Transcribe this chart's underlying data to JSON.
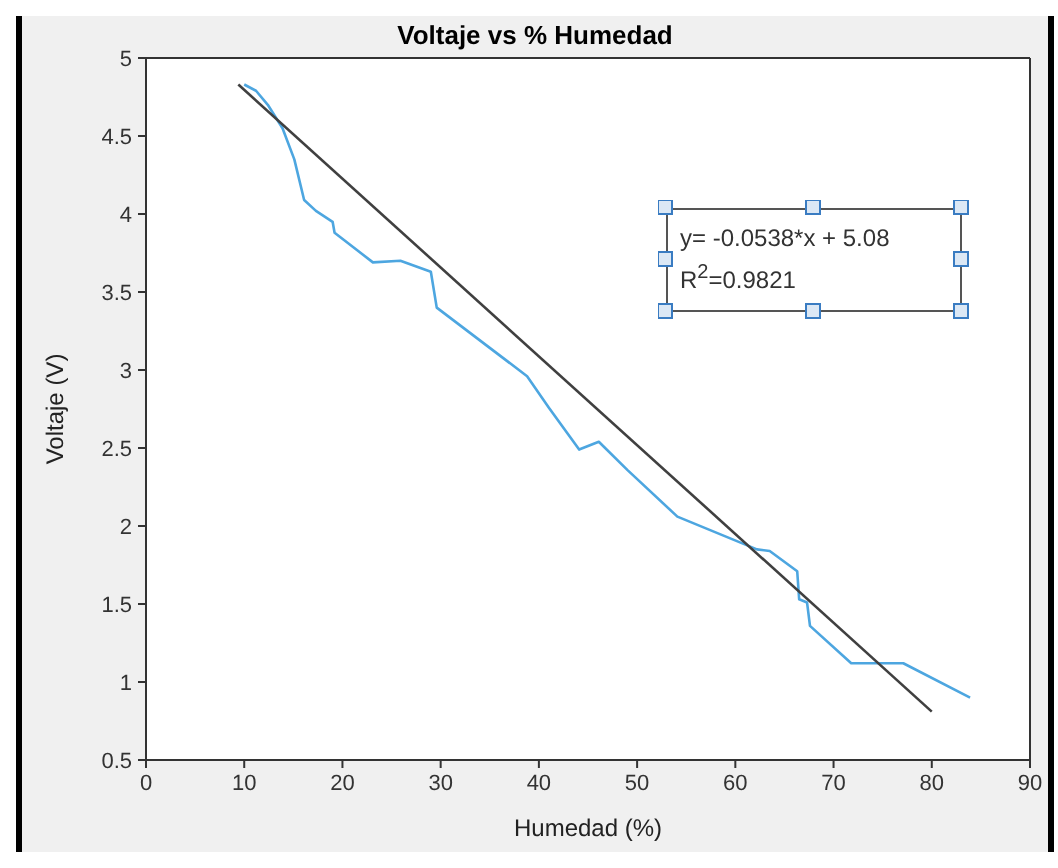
{
  "chart_data": {
    "type": "line",
    "title": "Voltaje vs % Humedad",
    "xlabel": "Humedad (%)",
    "ylabel": "Voltaje (V)",
    "xlim": [
      0,
      90
    ],
    "xticks": [
      0,
      10,
      20,
      30,
      40,
      50,
      60,
      70,
      80,
      90
    ],
    "ylim": [
      0.5,
      5
    ],
    "yticks": [
      0.5,
      1,
      1.5,
      2,
      2.5,
      3,
      3.5,
      4,
      4.5,
      5
    ],
    "legend": false,
    "marker": "none",
    "line_style": "solid",
    "annotations": [
      "y= -0.0538*x + 5.08",
      "R$^{2}$=0.9821"
    ],
    "series": [
      {
        "color": "#4da6e0",
        "x": [
          10,
          11.2,
          12.4,
          13.9,
          15.1,
          16.1,
          17.3,
          19.0,
          19.2,
          23.1,
          25.9,
          29.0,
          29.6,
          38.8,
          41.0,
          44.1,
          46.1,
          49.0,
          54.1,
          62.2,
          63.5,
          66.3,
          66.5,
          67.3,
          67.6,
          71.8,
          77.1,
          83.9
        ],
        "values": [
          4.83,
          4.79,
          4.7,
          4.55,
          4.35,
          4.09,
          4.02,
          3.95,
          3.88,
          3.69,
          3.7,
          3.63,
          3.4,
          2.96,
          2.76,
          2.49,
          2.54,
          2.36,
          2.06,
          1.85,
          1.84,
          1.71,
          1.53,
          1.51,
          1.36,
          1.12,
          1.12,
          0.9
        ]
      },
      {
        "type": "line",
        "color": "#404040",
        "x": [
          9.4,
          80
        ],
        "values": [
          4.83,
          0.81
        ]
      }
    ]
  }
}
